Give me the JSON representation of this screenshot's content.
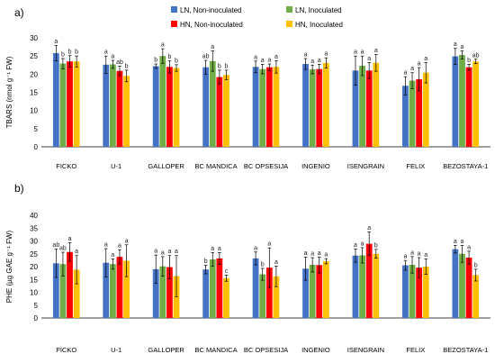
{
  "colors": {
    "lnNon": "#4472C4",
    "lnIn": "#70AD47",
    "hnNon": "#FF0000",
    "hnIn": "#FFC000",
    "error": "#000000",
    "axis": "#000000"
  },
  "legend": {
    "labels": [
      "LN, Non-inoculated",
      "LN, Inoculated",
      "HN, Non-inoculated",
      "HN, Inoculated"
    ]
  },
  "chart_data": [
    {
      "type": "bar",
      "panel_label": "a)",
      "ylabel": "TBARS (nmol g⁻¹ FW)",
      "ylim": [
        0,
        30
      ],
      "yticks": [
        0,
        5,
        10,
        15,
        20,
        25,
        30
      ],
      "grid": false,
      "legend_position": "top",
      "categories": [
        "FICKO",
        "U-1",
        "GALLOPER",
        "BC MANDICA",
        "BC OPSESIJA",
        "INGENIO",
        "ISENGRAIN",
        "FELIX",
        "BEZOSTAYA-1"
      ],
      "series": [
        {
          "name": "LN, Non-inoculated",
          "values": [
            25.8,
            22.6,
            22.2,
            21.9,
            22.0,
            22.8,
            21.0,
            16.8,
            24.9
          ],
          "errors": [
            2.1,
            2.4,
            0.6,
            1.9,
            1.6,
            1.5,
            4.0,
            2.5,
            2.2
          ],
          "letters": [
            "a",
            "a",
            "b",
            "ab",
            "a",
            "a",
            "a",
            "a",
            "a"
          ]
        },
        {
          "name": "LN, Inoculated",
          "values": [
            22.9,
            22.7,
            25.0,
            23.6,
            21.4,
            21.3,
            22.3,
            18.2,
            25.3
          ],
          "errors": [
            1.4,
            1.1,
            2.0,
            2.8,
            1.3,
            1.2,
            2.7,
            2.2,
            1.1
          ],
          "letters": [
            "b",
            "a",
            "a",
            "a",
            "a",
            "a",
            "a",
            "a",
            "a"
          ]
        },
        {
          "name": "HN, Non-inoculated",
          "values": [
            23.5,
            20.9,
            22.0,
            19.2,
            21.9,
            21.4,
            21.0,
            18.6,
            21.9
          ],
          "errors": [
            1.6,
            1.3,
            1.7,
            1.9,
            0.9,
            1.3,
            2.2,
            3.2,
            0.8
          ],
          "letters": [
            "b",
            "ab",
            "b",
            "b",
            "a",
            "a",
            "a",
            "a",
            "b"
          ]
        },
        {
          "name": "HN, Inoculated",
          "values": [
            23.5,
            19.5,
            21.7,
            19.8,
            22.0,
            23.1,
            23.1,
            20.4,
            23.5
          ],
          "errors": [
            1.5,
            1.6,
            0.9,
            1.3,
            1.7,
            1.4,
            2.3,
            2.8,
            0.6
          ],
          "letters": [
            "b",
            "b",
            "b",
            "b",
            "a",
            "a",
            "a",
            "a",
            "ab"
          ]
        }
      ]
    },
    {
      "type": "bar",
      "panel_label": "b)",
      "ylabel": "PHE (µg GAE g⁻¹ FW)",
      "ylim": [
        0,
        40
      ],
      "yticks": [
        0,
        5,
        10,
        15,
        20,
        25,
        30,
        35,
        40
      ],
      "grid": false,
      "categories": [
        "FICKO",
        "U-1",
        "GALLOPER",
        "BC MANDICA",
        "BC OPSESIJA",
        "INGENIO",
        "ISENGRAIN",
        "FELIX",
        "BEZOSTAYA-1"
      ],
      "series": [
        {
          "name": "LN, Non-inoculated",
          "values": [
            21.3,
            21.5,
            19.0,
            18.9,
            23.2,
            19.2,
            24.3,
            20.5,
            26.8
          ],
          "errors": [
            5.5,
            5.5,
            5.5,
            1.7,
            2.5,
            4.5,
            2.6,
            1.9,
            1.5
          ],
          "letters": [
            "ab",
            "a",
            "a",
            "b",
            "a",
            "a",
            "a",
            "a",
            "a"
          ]
        },
        {
          "name": "LN, Inoculated",
          "values": [
            21.0,
            21.0,
            20.1,
            22.8,
            17.0,
            20.7,
            24.4,
            20.7,
            25.0
          ],
          "errors": [
            4.6,
            2.0,
            3.8,
            2.7,
            2.3,
            2.8,
            3.0,
            3.2,
            3.3
          ],
          "letters": [
            "ab",
            "a",
            "a",
            "a",
            "b",
            "a",
            "a",
            "a",
            "a"
          ]
        },
        {
          "name": "HN, Non-inoculated",
          "values": [
            25.7,
            23.8,
            19.8,
            23.2,
            19.6,
            20.6,
            28.9,
            19.6,
            23.5
          ],
          "errors": [
            3.6,
            2.8,
            4.5,
            2.3,
            7.7,
            3.1,
            4.6,
            3.9,
            2.5
          ],
          "letters": [
            "a",
            "a",
            "a",
            "a",
            "a",
            "a",
            "a",
            "a",
            "a"
          ]
        },
        {
          "name": "HN, Inoculated",
          "values": [
            18.8,
            22.3,
            16.3,
            15.5,
            16.2,
            22.1,
            25.0,
            20.0,
            16.7
          ],
          "errors": [
            5.5,
            6.2,
            8.0,
            1.2,
            4.0,
            1.0,
            1.7,
            3.0,
            2.3
          ],
          "letters": [
            "a",
            "a",
            "a",
            "c",
            "a",
            "a",
            "b",
            "a",
            "b"
          ]
        }
      ]
    }
  ]
}
